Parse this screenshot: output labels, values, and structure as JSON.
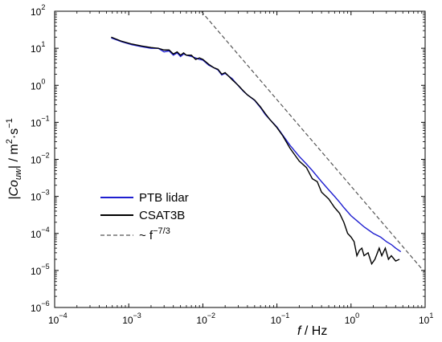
{
  "chart_data": {
    "type": "line",
    "title": "",
    "xlabel": "f / Hz",
    "xlabel_var": "f",
    "xlabel_unit": " / Hz",
    "ylabel": "|Co_uw| / m²·s⁻¹",
    "ylabel_parts": {
      "pipe_l": "|Co",
      "sub": "uw",
      "pipe_r": "| / m",
      "sq": "2",
      "mid": "·s",
      "neg": "−1"
    },
    "x_scale": "log",
    "y_scale": "log",
    "xlim": [
      0.0001,
      10
    ],
    "ylim": [
      1e-06,
      100
    ],
    "grid": false,
    "legend_position": "lower-left",
    "x_ticks": [
      {
        "value": 0.0001,
        "base": "10",
        "exp": "−4"
      },
      {
        "value": 0.001,
        "base": "10",
        "exp": "−3"
      },
      {
        "value": 0.01,
        "base": "10",
        "exp": "−2"
      },
      {
        "value": 0.1,
        "base": "10",
        "exp": "−1"
      },
      {
        "value": 1,
        "base": "10",
        "exp": "0"
      },
      {
        "value": 10,
        "base": "10",
        "exp": "1"
      }
    ],
    "y_ticks": [
      {
        "value": 1e-06,
        "base": "10",
        "exp": "−6"
      },
      {
        "value": 1e-05,
        "base": "10",
        "exp": "−5"
      },
      {
        "value": 0.0001,
        "base": "10",
        "exp": "−4"
      },
      {
        "value": 0.001,
        "base": "10",
        "exp": "−3"
      },
      {
        "value": 0.01,
        "base": "10",
        "exp": "−2"
      },
      {
        "value": 0.1,
        "base": "10",
        "exp": "−1"
      },
      {
        "value": 1,
        "base": "10",
        "exp": "0"
      },
      {
        "value": 10,
        "base": "10",
        "exp": "1"
      },
      {
        "value": 100,
        "base": "10",
        "exp": "2"
      }
    ],
    "series": [
      {
        "name": "PTB lidar",
        "color": "#1f1fd0",
        "style": "solid",
        "x": [
          0.00058,
          0.0008,
          0.0011,
          0.0015,
          0.002,
          0.0025,
          0.003,
          0.0035,
          0.004,
          0.0045,
          0.005,
          0.0055,
          0.006,
          0.007,
          0.008,
          0.009,
          0.01,
          0.012,
          0.014,
          0.016,
          0.018,
          0.02,
          0.025,
          0.03,
          0.035,
          0.04,
          0.05,
          0.06,
          0.07,
          0.08,
          0.1,
          0.12,
          0.15,
          0.2,
          0.25,
          0.3,
          0.4,
          0.5,
          0.6,
          0.7,
          0.8,
          1.0,
          1.2,
          1.5,
          2.0,
          2.5,
          3.0,
          3.5,
          4.0,
          4.7
        ],
        "y": [
          19,
          15,
          12.5,
          11,
          10,
          10,
          8,
          8.5,
          6.5,
          7.5,
          6,
          7,
          6.5,
          6,
          5.5,
          5,
          4.8,
          3.5,
          3,
          2.6,
          1.9,
          2.1,
          1.5,
          0.98,
          0.7,
          0.55,
          0.39,
          0.25,
          0.16,
          0.12,
          0.075,
          0.045,
          0.024,
          0.012,
          0.0075,
          0.005,
          0.0025,
          0.0015,
          0.001,
          0.0007,
          0.0005,
          0.0003,
          0.00022,
          0.00015,
          0.0001,
          8e-05,
          6e-05,
          5e-05,
          4e-05,
          3.2e-05
        ]
      },
      {
        "name": "CSAT3B",
        "color": "#000000",
        "style": "solid",
        "x": [
          0.00058,
          0.0008,
          0.0011,
          0.0015,
          0.002,
          0.0025,
          0.003,
          0.0035,
          0.004,
          0.0045,
          0.005,
          0.0055,
          0.006,
          0.007,
          0.008,
          0.009,
          0.01,
          0.012,
          0.014,
          0.016,
          0.018,
          0.02,
          0.025,
          0.03,
          0.035,
          0.04,
          0.05,
          0.06,
          0.07,
          0.08,
          0.1,
          0.12,
          0.15,
          0.2,
          0.25,
          0.3,
          0.35,
          0.4,
          0.5,
          0.6,
          0.7,
          0.8,
          0.9,
          1.0,
          1.1,
          1.2,
          1.3,
          1.4,
          1.5,
          1.7,
          1.9,
          2.1,
          2.4,
          2.6,
          2.9,
          3.2,
          3.5,
          4.0,
          4.5
        ],
        "y": [
          20,
          15.5,
          13,
          11.5,
          10.5,
          10,
          9,
          9,
          7,
          8,
          6.5,
          7.5,
          6.5,
          6.5,
          5,
          5.5,
          5,
          3.7,
          3,
          2.7,
          2,
          2.2,
          1.4,
          1.0,
          0.72,
          0.55,
          0.4,
          0.26,
          0.17,
          0.12,
          0.072,
          0.043,
          0.02,
          0.009,
          0.006,
          0.003,
          0.0025,
          0.0013,
          0.00085,
          0.0005,
          0.00035,
          0.0002,
          0.0001,
          8e-05,
          6e-05,
          2.5e-05,
          3.5e-05,
          4e-05,
          2.5e-05,
          3e-05,
          1.5e-05,
          2e-05,
          4e-05,
          2.5e-05,
          4e-05,
          2e-05,
          2.5e-05,
          1.8e-05,
          2e-05
        ]
      },
      {
        "name": "~ f",
        "name_exp": "−7/3",
        "color": "#555555",
        "style": "dashed",
        "x": [
          0.0095,
          10
        ],
        "y": [
          100,
          8.7e-06
        ]
      }
    ]
  }
}
